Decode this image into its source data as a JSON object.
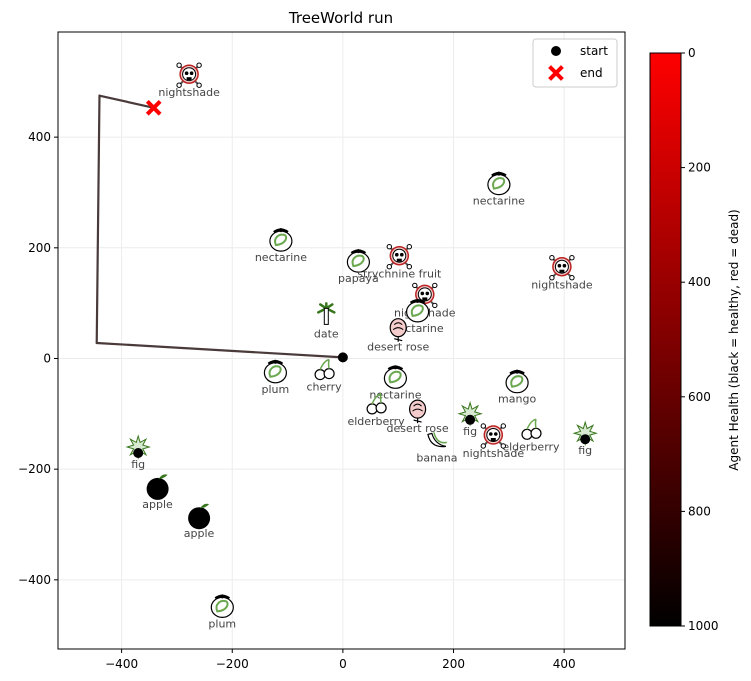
{
  "chart_data": {
    "type": "scatter",
    "title": "TreeWorld run",
    "xlim": [
      -515,
      510
    ],
    "ylim": [
      -525,
      590
    ],
    "xticks": [
      -400,
      -200,
      0,
      200,
      400
    ],
    "yticks": [
      -400,
      -200,
      0,
      200,
      400
    ],
    "grid": true,
    "legend": {
      "placement": "top-right",
      "entries": [
        {
          "label": "start",
          "marker": "circle",
          "color": "#000000"
        },
        {
          "label": "end",
          "marker": "x",
          "color": "#ff0000"
        }
      ]
    },
    "path": [
      {
        "x": 0,
        "y": 2,
        "health": 1000
      },
      {
        "x": -445,
        "y": 28,
        "health": 900
      },
      {
        "x": -440,
        "y": 475,
        "health": 750
      },
      {
        "x": -342,
        "y": 453,
        "health": 700
      }
    ],
    "start": {
      "x": 0,
      "y": 2
    },
    "end": {
      "x": -342,
      "y": 453
    },
    "items": [
      {
        "name": "nightshade",
        "x": -278,
        "y": 512,
        "kind": "poison"
      },
      {
        "name": "nectarine",
        "x": 282,
        "y": 316,
        "kind": "peach"
      },
      {
        "name": "nectarine",
        "x": -112,
        "y": 214,
        "kind": "peach"
      },
      {
        "name": "papaya",
        "x": 28,
        "y": 176,
        "kind": "peach"
      },
      {
        "name": "strychnine fruit",
        "x": 102,
        "y": 184,
        "kind": "poison"
      },
      {
        "name": "nightshade",
        "x": 396,
        "y": 164,
        "kind": "poison"
      },
      {
        "name": "nightshade",
        "x": 148,
        "y": 114,
        "kind": "poison"
      },
      {
        "name": "nectarine",
        "x": 135,
        "y": 86,
        "kind": "peach"
      },
      {
        "name": "date",
        "x": -30,
        "y": 76,
        "kind": "palm"
      },
      {
        "name": "desert rose",
        "x": 100,
        "y": 52,
        "kind": "rose"
      },
      {
        "name": "plum",
        "x": -122,
        "y": -24,
        "kind": "peach"
      },
      {
        "name": "cherry",
        "x": -34,
        "y": -20,
        "kind": "cherry"
      },
      {
        "name": "nectarine",
        "x": 95,
        "y": -34,
        "kind": "peach"
      },
      {
        "name": "mango",
        "x": 315,
        "y": -42,
        "kind": "peach"
      },
      {
        "name": "elderberry",
        "x": 60,
        "y": -82,
        "kind": "cherry"
      },
      {
        "name": "desert rose",
        "x": 135,
        "y": -95,
        "kind": "rose"
      },
      {
        "name": "fig",
        "x": 230,
        "y": -100,
        "kind": "fig"
      },
      {
        "name": "elderberry",
        "x": 340,
        "y": -128,
        "kind": "cherry"
      },
      {
        "name": "fig",
        "x": 438,
        "y": -135,
        "kind": "fig"
      },
      {
        "name": "nightshade",
        "x": 272,
        "y": -140,
        "kind": "poison"
      },
      {
        "name": "banana",
        "x": 170,
        "y": -148,
        "kind": "banana"
      },
      {
        "name": "fig",
        "x": -370,
        "y": -160,
        "kind": "fig"
      },
      {
        "name": "apple",
        "x": -335,
        "y": -232,
        "kind": "apple"
      },
      {
        "name": "apple",
        "x": -260,
        "y": -285,
        "kind": "apple"
      },
      {
        "name": "plum",
        "x": -218,
        "y": -448,
        "kind": "peach"
      }
    ],
    "colorbar": {
      "label": "Agent Health (black = healthy, red = dead)",
      "ticks": [
        0,
        200,
        400,
        600,
        800,
        1000
      ],
      "range": [
        0,
        1000
      ],
      "color_low": "#ff0000",
      "color_high": "#000000"
    }
  }
}
